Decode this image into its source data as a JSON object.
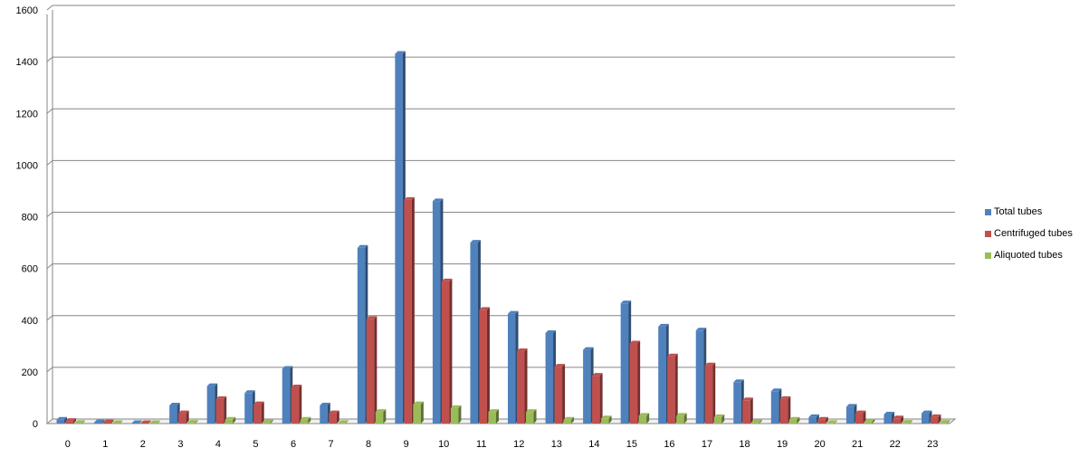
{
  "chart_data": {
    "type": "bar",
    "title": "",
    "xlabel": "",
    "ylabel": "",
    "categories": [
      "0",
      "1",
      "2",
      "3",
      "4",
      "5",
      "6",
      "7",
      "8",
      "9",
      "10",
      "11",
      "12",
      "13",
      "14",
      "15",
      "16",
      "17",
      "18",
      "19",
      "20",
      "21",
      "22",
      "23"
    ],
    "ylim": [
      0,
      1600
    ],
    "yticks": [
      "0",
      "200",
      "400",
      "600",
      "800",
      "1000",
      "1200",
      "1400",
      "1600"
    ],
    "grid": true,
    "legend_position": "right",
    "series": [
      {
        "name": "Total tubes",
        "color": "#4F81BD",
        "values": [
          15,
          5,
          0,
          70,
          145,
          118,
          212,
          70,
          680,
          1430,
          860,
          700,
          425,
          350,
          285,
          465,
          375,
          360,
          160,
          125,
          25,
          65,
          35,
          40
        ]
      },
      {
        "name": "Centrifuged tubes",
        "color": "#C0504D",
        "values": [
          10,
          5,
          0,
          40,
          95,
          75,
          140,
          40,
          405,
          865,
          550,
          440,
          280,
          220,
          185,
          310,
          260,
          225,
          90,
          95,
          15,
          40,
          20,
          25
        ]
      },
      {
        "name": "Aliquoted tubes",
        "color": "#9BBB59",
        "values": [
          2,
          0,
          0,
          3,
          15,
          5,
          15,
          2,
          45,
          75,
          60,
          45,
          45,
          15,
          20,
          30,
          30,
          25,
          5,
          15,
          2,
          8,
          3,
          3
        ]
      }
    ]
  }
}
